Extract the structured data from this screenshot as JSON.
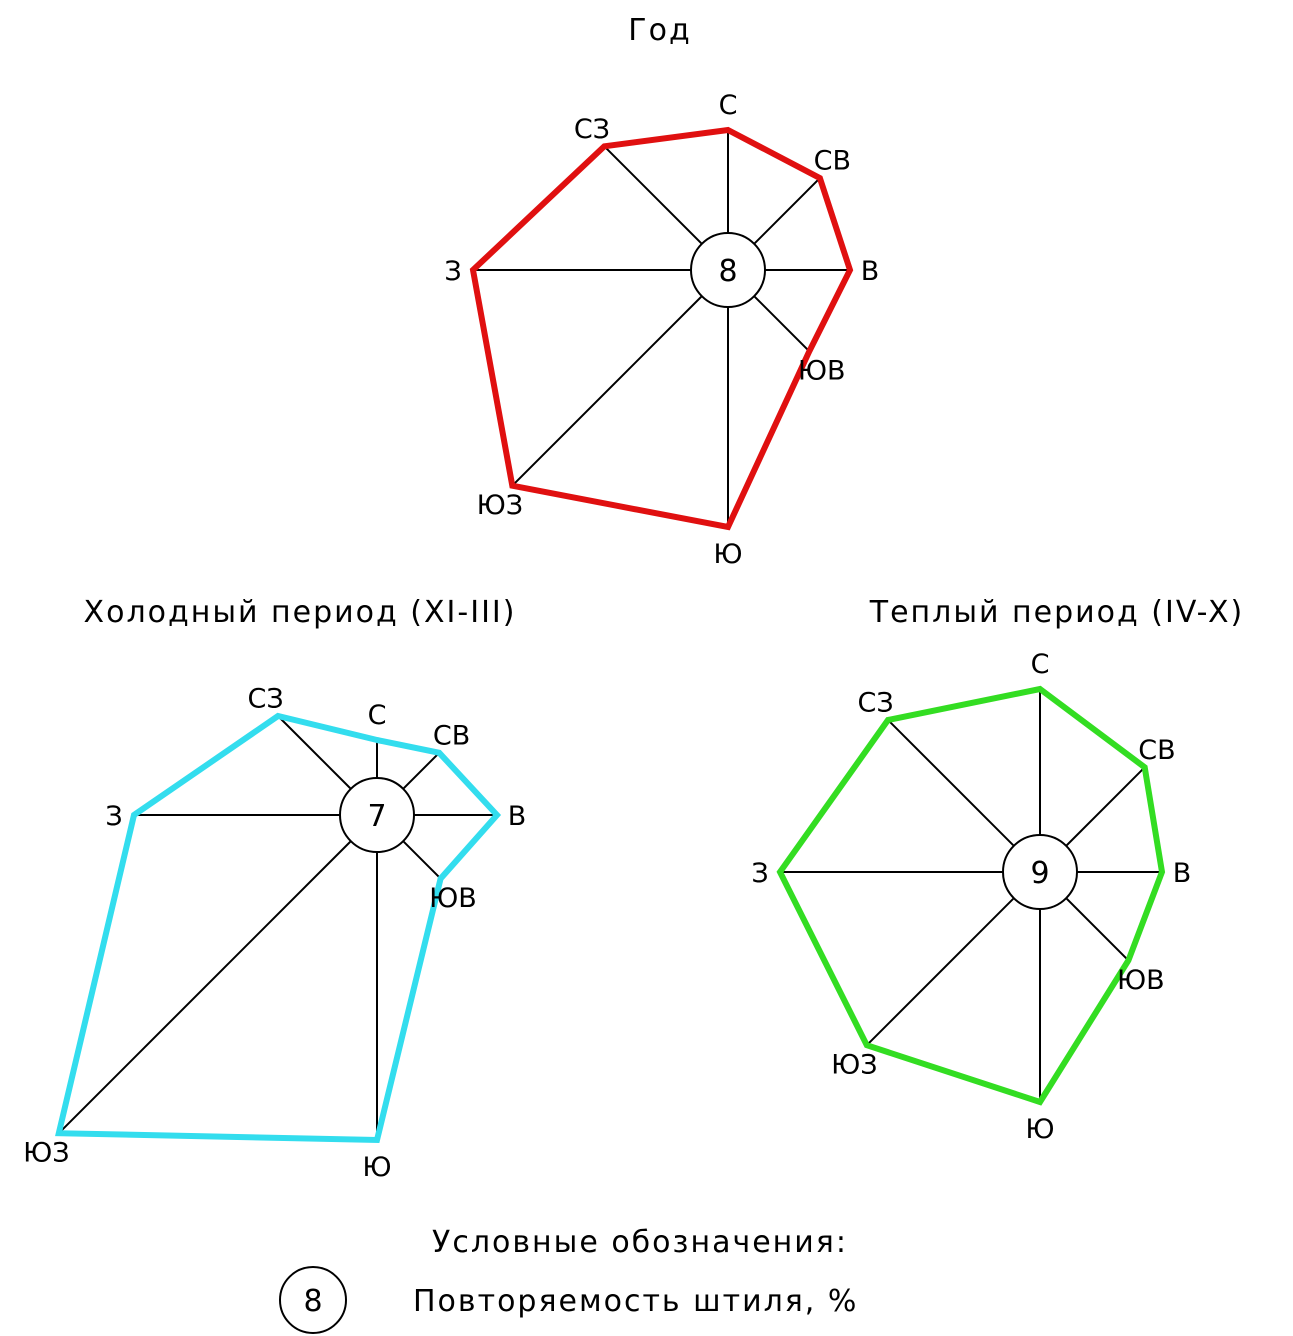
{
  "chart_data": [
    {
      "type": "radar",
      "title": "Год",
      "directions": [
        "С",
        "СВ",
        "В",
        "ЮВ",
        "Ю",
        "ЮЗ",
        "З",
        "СЗ"
      ],
      "values": [
        140,
        130,
        122,
        115,
        257,
        305,
        255,
        175
      ],
      "calm_value": "8",
      "color": "#e01010"
    },
    {
      "type": "radar",
      "title": "Холодный период (XI-III)",
      "directions": [
        "С",
        "СВ",
        "В",
        "ЮВ",
        "Ю",
        "ЮЗ",
        "З",
        "СЗ"
      ],
      "values": [
        75,
        88,
        120,
        90,
        325,
        450,
        243,
        140
      ],
      "calm_value": "7",
      "color": "#33ddee"
    },
    {
      "type": "radar",
      "title": "Теплый период (IV-X)",
      "directions": [
        "С",
        "СВ",
        "В",
        "ЮВ",
        "Ю",
        "ЮЗ",
        "З",
        "СЗ"
      ],
      "values": [
        183,
        148,
        122,
        125,
        230,
        245,
        260,
        215
      ],
      "calm_value": "9",
      "color": "#33dd22"
    }
  ],
  "legend": {
    "title": "Условные обозначения:",
    "symbol_value": "8",
    "label": "Повторяемость штиля, %"
  }
}
